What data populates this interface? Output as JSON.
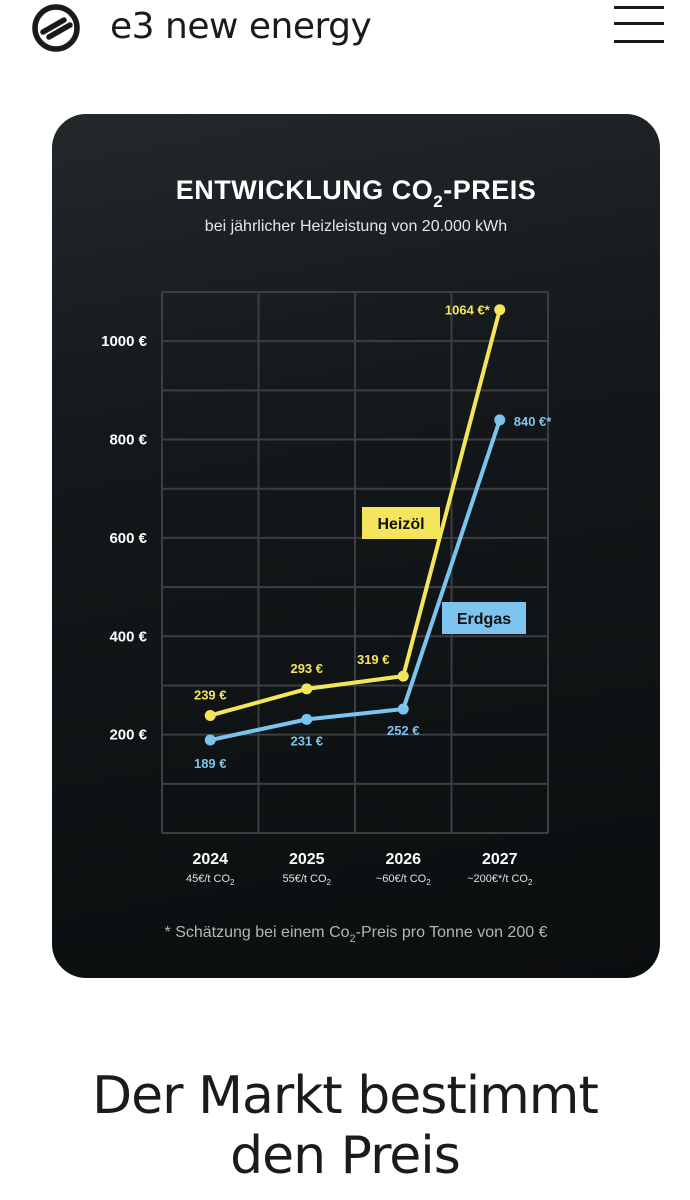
{
  "header": {
    "brand": "e3 new energy",
    "logo_icon": "e3-logo-icon",
    "menu_icon": "hamburger-menu-icon"
  },
  "chart_card": {
    "title_part1": "ENTWICKLUNG CO",
    "title_sub": "2",
    "title_part2": "-PREIS",
    "subtitle": "bei jährlicher Heizleistung von 20.000 kWh",
    "footnote_part1": "* Schätzung bei einem Co",
    "footnote_sub": "2",
    "footnote_part2": "-Preis pro Tonne von 200 €",
    "x_sublabels": [
      "45€/t CO",
      "55€/t CO",
      "~60€/t CO",
      "~200€*/t CO"
    ],
    "x_sublabel_sub": "2",
    "series_label_oil": "Heizöl",
    "series_label_gas": "Erdgas"
  },
  "chart_data": {
    "type": "line",
    "title": "ENTWICKLUNG CO2-PREIS",
    "subtitle": "bei jährlicher Heizleistung von 20.000 kWh",
    "x": [
      "2024",
      "2025",
      "2026",
      "2027"
    ],
    "y_ticks": [
      200,
      400,
      600,
      800,
      1000
    ],
    "y_tick_labels": [
      "200 €",
      "400 €",
      "600 €",
      "800 €",
      "1000 €"
    ],
    "ylim": [
      0,
      1100
    ],
    "grid": true,
    "series": [
      {
        "name": "Heizöl",
        "color": "#f4e55c",
        "values": [
          239,
          293,
          319,
          1064
        ],
        "labels": [
          "239 €",
          "293 €",
          "319 €",
          "1064 €*"
        ]
      },
      {
        "name": "Erdgas",
        "color": "#7cc4ee",
        "values": [
          189,
          231,
          252,
          840
        ],
        "labels": [
          "189 €",
          "231 €",
          "252 €",
          "840 €*"
        ]
      }
    ]
  },
  "footer": {
    "heading_line1": "Der Markt bestimmt",
    "heading_line2": "den Preis"
  },
  "colors": {
    "oil": "#f4e55c",
    "gas": "#7cc4ee",
    "card_bg": "#111517",
    "text_dark": "#1a1a1a"
  }
}
